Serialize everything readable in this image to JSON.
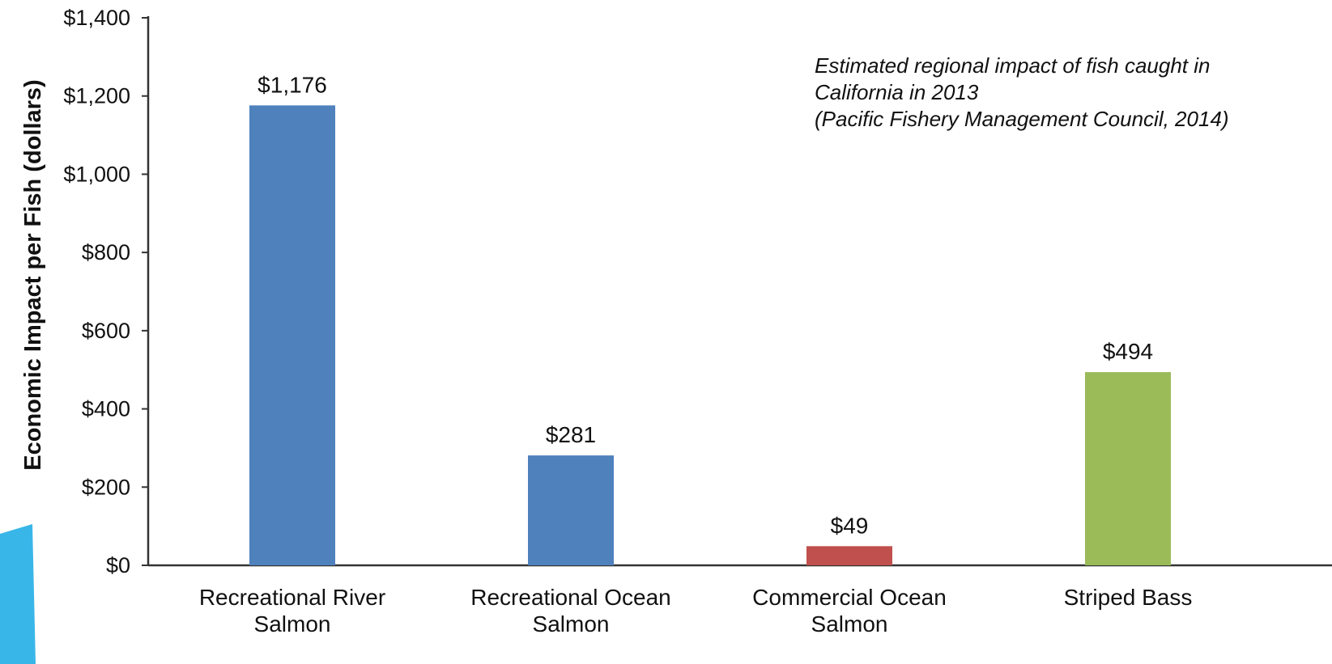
{
  "chart_data": {
    "type": "bar",
    "categories": [
      [
        "Recreational River",
        "Salmon"
      ],
      [
        "Recreational Ocean",
        "Salmon"
      ],
      [
        "Commercial Ocean",
        "Salmon"
      ],
      [
        "Striped Bass"
      ]
    ],
    "values": [
      1176,
      281,
      49,
      494
    ],
    "value_labels": [
      "$1,176",
      "$281",
      "$49",
      "$494"
    ],
    "bar_colors": [
      "#4f81bd",
      "#4f81bd",
      "#c0504d",
      "#9bbb59"
    ],
    "ylabel": "Economic Impact per Fish (dollars)",
    "xlabel": "",
    "ylim": [
      0,
      1400
    ],
    "yticks": [
      0,
      200,
      400,
      600,
      800,
      1000,
      1200,
      1400
    ],
    "ytick_labels": [
      "$0",
      "$200",
      "$400",
      "$600",
      "$800",
      "$1,000",
      "$1,200",
      "$1,400"
    ],
    "grid": false,
    "legend": null,
    "annotation": [
      "Estimated regional impact of fish caught in",
      "California in 2013",
      "(Pacific Fishery Management Council, 2014)"
    ]
  },
  "decor_color": "#39b6e8"
}
